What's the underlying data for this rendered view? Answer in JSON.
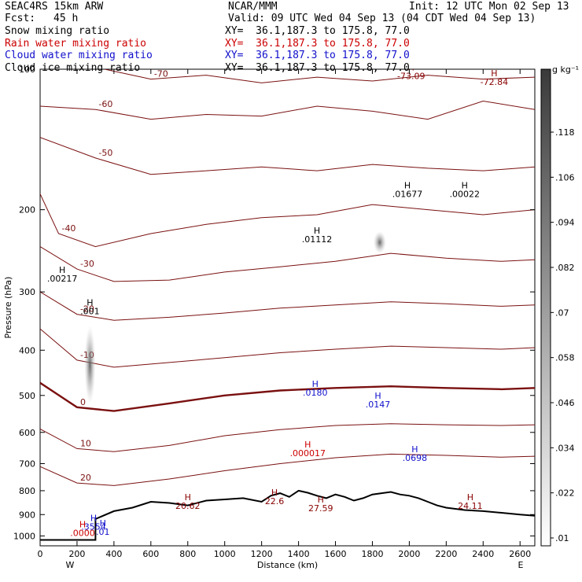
{
  "header": {
    "model": "SEAC4RS 15km ARW",
    "center": "NCAR/MMM",
    "init": "Init: 12 UTC Mon 02 Sep 13",
    "fcst_label": "Fcst:",
    "fcst_value": "45 h",
    "valid": "Valid: 09 UTC Wed 04 Sep 13 (04 CDT Wed 04 Sep 13)"
  },
  "fields": [
    {
      "name": "Snow mixing ratio",
      "xy": "XY=  36.1,187.3 to 175.8, 77.0",
      "color": "#000000"
    },
    {
      "name": "Rain water mixing ratio",
      "xy": "XY=  36.1,187.3 to 175.8, 77.0",
      "color": "#cc0000"
    },
    {
      "name": "Cloud water mixing ratio",
      "xy": "XY=  36.1,187.3 to 175.8, 77.0",
      "color": "#1010cc"
    },
    {
      "name": "Cloud ice mixing ratio",
      "xy": "XY=  36.1,187.3 to 175.8, 77.0",
      "color": "#000000"
    }
  ],
  "chart_data": {
    "type": "cross-section",
    "xlabel": "Distance (km)",
    "ylabel": "Pressure (hPa)",
    "xlim": [
      0,
      2680
    ],
    "ylim": [
      1050,
      100
    ],
    "y_scale": "log",
    "x_ticks": [
      0,
      200,
      400,
      600,
      800,
      1000,
      1200,
      1400,
      1600,
      1800,
      2000,
      2200,
      2400,
      2600
    ],
    "y_ticks": [
      200,
      300,
      400,
      500,
      600,
      700,
      800,
      900,
      1000
    ],
    "y_tick_labels_top": "100",
    "end_labels": {
      "left": "W",
      "right": "E"
    },
    "colorbar": {
      "unit": "g kg⁻¹",
      "ticks": [
        ".118",
        ".106",
        ".094",
        ".082",
        ".07",
        ".058",
        ".046",
        ".034",
        ".022",
        ".01"
      ]
    },
    "temperature_contour_labels": [
      "-70",
      "-60",
      "-50",
      "-40",
      "-30",
      "-20",
      "-10",
      "0",
      "10",
      "20"
    ],
    "maxima_labels": [
      {
        "text": ".00217",
        "color": "#000000",
        "x": 120,
        "p": 285
      },
      {
        "text": ".001",
        "color": "#000000",
        "x": 270,
        "p": 335
      },
      {
        "text": ".01112",
        "color": "#000000",
        "x": 1500,
        "p": 235
      },
      {
        "text": ".01677",
        "color": "#000000",
        "x": 1990,
        "p": 188
      },
      {
        "text": ".00022",
        "color": "#000000",
        "x": 2300,
        "p": 188
      },
      {
        "text": "-73.09",
        "color": "#880000",
        "x": 2010,
        "p": 105
      },
      {
        "text": "-72.84",
        "color": "#880000",
        "x": 2460,
        "p": 108
      },
      {
        "text": ".0180",
        "color": "#1010cc",
        "x": 1490,
        "p": 500
      },
      {
        "text": ".0147",
        "color": "#1010cc",
        "x": 1830,
        "p": 530
      },
      {
        "text": ".000017",
        "color": "#cc0000",
        "x": 1450,
        "p": 675
      },
      {
        "text": ".0698",
        "color": "#1010cc",
        "x": 2030,
        "p": 690
      },
      {
        "text": "20.62",
        "color": "#880000",
        "x": 800,
        "p": 875
      },
      {
        "text": "22.6",
        "color": "#880000",
        "x": 1270,
        "p": 855
      },
      {
        "text": "27.59",
        "color": "#880000",
        "x": 1520,
        "p": 885
      },
      {
        "text": "24.11",
        "color": "#880000",
        "x": 2330,
        "p": 875
      },
      {
        "text": ".3554",
        "color": "#1010cc",
        "x": 290,
        "p": 970
      },
      {
        "text": ".0000",
        "color": "#cc0000",
        "x": 230,
        "p": 1000
      },
      {
        "text": ".01",
        "color": "#1010cc",
        "x": 340,
        "p": 995
      }
    ],
    "temperature_contours": [
      {
        "value": -70,
        "points": [
          [
            350,
            100
          ],
          [
            600,
            105
          ],
          [
            900,
            103
          ],
          [
            1200,
            107
          ],
          [
            1500,
            104
          ],
          [
            1800,
            106
          ],
          [
            2100,
            103
          ],
          [
            2400,
            105
          ],
          [
            2680,
            104
          ]
        ]
      },
      {
        "value": -60,
        "points": [
          [
            0,
            120
          ],
          [
            300,
            122
          ],
          [
            600,
            128
          ],
          [
            900,
            125
          ],
          [
            1200,
            126
          ],
          [
            1500,
            120
          ],
          [
            1800,
            123
          ],
          [
            2100,
            128
          ],
          [
            2400,
            117
          ],
          [
            2680,
            122
          ]
        ]
      },
      {
        "value": -50,
        "points": [
          [
            0,
            140
          ],
          [
            300,
            155
          ],
          [
            600,
            168
          ],
          [
            900,
            165
          ],
          [
            1200,
            162
          ],
          [
            1500,
            165
          ],
          [
            1800,
            160
          ],
          [
            2100,
            163
          ],
          [
            2400,
            165
          ],
          [
            2680,
            162
          ]
        ]
      },
      {
        "value": -40,
        "points": [
          [
            0,
            185
          ],
          [
            100,
            225
          ],
          [
            300,
            240
          ],
          [
            600,
            225
          ],
          [
            900,
            215
          ],
          [
            1200,
            208
          ],
          [
            1500,
            205
          ],
          [
            1800,
            195
          ],
          [
            2100,
            200
          ],
          [
            2400,
            205
          ],
          [
            2680,
            200
          ]
        ]
      },
      {
        "value": -30,
        "points": [
          [
            0,
            240
          ],
          [
            200,
            268
          ],
          [
            400,
            285
          ],
          [
            700,
            283
          ],
          [
            1000,
            272
          ],
          [
            1300,
            265
          ],
          [
            1600,
            258
          ],
          [
            1900,
            248
          ],
          [
            2200,
            254
          ],
          [
            2500,
            258
          ],
          [
            2680,
            256
          ]
        ]
      },
      {
        "value": -20,
        "points": [
          [
            0,
            300
          ],
          [
            200,
            335
          ],
          [
            400,
            345
          ],
          [
            700,
            340
          ],
          [
            1000,
            333
          ],
          [
            1300,
            325
          ],
          [
            1600,
            320
          ],
          [
            1900,
            315
          ],
          [
            2200,
            318
          ],
          [
            2500,
            322
          ],
          [
            2680,
            320
          ]
        ]
      },
      {
        "value": -10,
        "points": [
          [
            0,
            360
          ],
          [
            200,
            420
          ],
          [
            400,
            435
          ],
          [
            700,
            425
          ],
          [
            1000,
            415
          ],
          [
            1300,
            405
          ],
          [
            1600,
            398
          ],
          [
            1900,
            392
          ],
          [
            2200,
            395
          ],
          [
            2500,
            398
          ],
          [
            2680,
            395
          ]
        ]
      },
      {
        "value": 0,
        "points": [
          [
            0,
            470
          ],
          [
            200,
            530
          ],
          [
            400,
            540
          ],
          [
            700,
            520
          ],
          [
            1000,
            500
          ],
          [
            1300,
            488
          ],
          [
            1600,
            482
          ],
          [
            1900,
            478
          ],
          [
            2200,
            482
          ],
          [
            2500,
            485
          ],
          [
            2680,
            482
          ]
        ]
      },
      {
        "value": 10,
        "points": [
          [
            0,
            590
          ],
          [
            200,
            650
          ],
          [
            400,
            660
          ],
          [
            700,
            640
          ],
          [
            1000,
            610
          ],
          [
            1300,
            592
          ],
          [
            1600,
            580
          ],
          [
            1900,
            575
          ],
          [
            2200,
            578
          ],
          [
            2500,
            580
          ],
          [
            2680,
            578
          ]
        ]
      },
      {
        "value": 20,
        "points": [
          [
            0,
            710
          ],
          [
            200,
            770
          ],
          [
            400,
            780
          ],
          [
            700,
            755
          ],
          [
            1000,
            725
          ],
          [
            1300,
            700
          ],
          [
            1600,
            680
          ],
          [
            1900,
            668
          ],
          [
            2200,
            672
          ],
          [
            2500,
            678
          ],
          [
            2680,
            675
          ]
        ]
      }
    ],
    "terrain": [
      [
        0,
        1020
      ],
      [
        300,
        1020
      ],
      [
        300,
        920
      ],
      [
        400,
        885
      ],
      [
        500,
        870
      ],
      [
        600,
        845
      ],
      [
        700,
        850
      ],
      [
        800,
        860
      ],
      [
        900,
        840
      ],
      [
        1000,
        835
      ],
      [
        1100,
        830
      ],
      [
        1200,
        845
      ],
      [
        1250,
        820
      ],
      [
        1300,
        810
      ],
      [
        1350,
        825
      ],
      [
        1400,
        800
      ],
      [
        1450,
        808
      ],
      [
        1500,
        820
      ],
      [
        1550,
        830
      ],
      [
        1600,
        815
      ],
      [
        1650,
        825
      ],
      [
        1700,
        840
      ],
      [
        1750,
        830
      ],
      [
        1800,
        815
      ],
      [
        1850,
        810
      ],
      [
        1900,
        805
      ],
      [
        1950,
        815
      ],
      [
        2000,
        820
      ],
      [
        2050,
        830
      ],
      [
        2100,
        845
      ],
      [
        2150,
        860
      ],
      [
        2200,
        870
      ],
      [
        2300,
        880
      ],
      [
        2400,
        885
      ],
      [
        2500,
        892
      ],
      [
        2600,
        900
      ],
      [
        2680,
        905
      ]
    ]
  }
}
